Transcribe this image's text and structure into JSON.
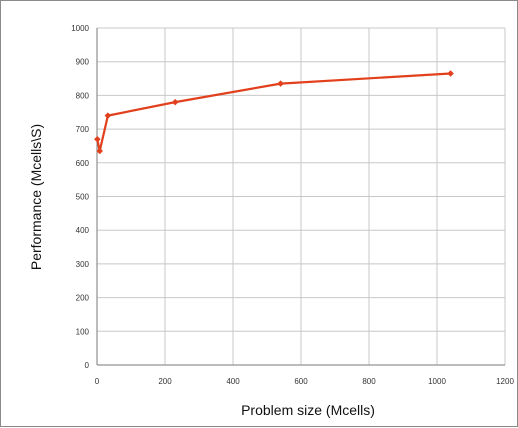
{
  "chart_data": {
    "type": "line",
    "xlabel": "Problem size (Mcells)",
    "ylabel": "Performance (Mcells\\S)",
    "xlim": [
      0,
      1200
    ],
    "ylim": [
      0,
      1000
    ],
    "x_ticks": [
      0,
      200,
      400,
      600,
      800,
      1000,
      1200
    ],
    "y_ticks": [
      0,
      100,
      200,
      300,
      400,
      500,
      600,
      700,
      800,
      900,
      1000
    ],
    "x_tick_labels": [
      "0",
      "200",
      "400",
      "600",
      "800",
      "1000",
      "1200"
    ],
    "y_tick_labels": [
      "0",
      "100",
      "200",
      "300",
      "400",
      "500",
      "600",
      "700",
      "800",
      "900",
      "1000"
    ],
    "grid": true,
    "legend": "none",
    "series": [
      {
        "color": "#e2401c",
        "marker": "diamond",
        "points": [
          {
            "x": 1,
            "y": 670
          },
          {
            "x": 8,
            "y": 635
          },
          {
            "x": 32,
            "y": 740
          },
          {
            "x": 230,
            "y": 780
          },
          {
            "x": 540,
            "y": 835
          },
          {
            "x": 1040,
            "y": 865
          }
        ]
      }
    ]
  }
}
